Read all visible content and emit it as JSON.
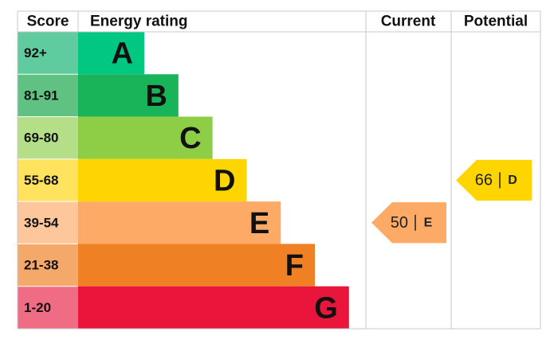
{
  "header": {
    "score": "Score",
    "rating": "Energy rating",
    "current": "Current",
    "potential": "Potential"
  },
  "bands": [
    {
      "score": "92+",
      "letter": "A",
      "color": "#00c781",
      "score_color": "#5fcb9f"
    },
    {
      "score": "81-91",
      "letter": "B",
      "color": "#19b459",
      "score_color": "#5fc283"
    },
    {
      "score": "69-80",
      "letter": "C",
      "color": "#8dce46",
      "score_color": "#b4de87"
    },
    {
      "score": "55-68",
      "letter": "D",
      "color": "#ffd500",
      "score_color": "#ffe35e"
    },
    {
      "score": "39-54",
      "letter": "E",
      "color": "#fcaa65",
      "score_color": "#fdc79b"
    },
    {
      "score": "21-38",
      "letter": "F",
      "color": "#ef8023",
      "score_color": "#f4a86a"
    },
    {
      "score": "1-20",
      "letter": "G",
      "color": "#e9153b",
      "score_color": "#f06b84"
    }
  ],
  "current": {
    "value": 50,
    "letter": "E",
    "color": "#fcaa65"
  },
  "potential": {
    "value": 66,
    "letter": "D",
    "color": "#ffd500"
  }
}
